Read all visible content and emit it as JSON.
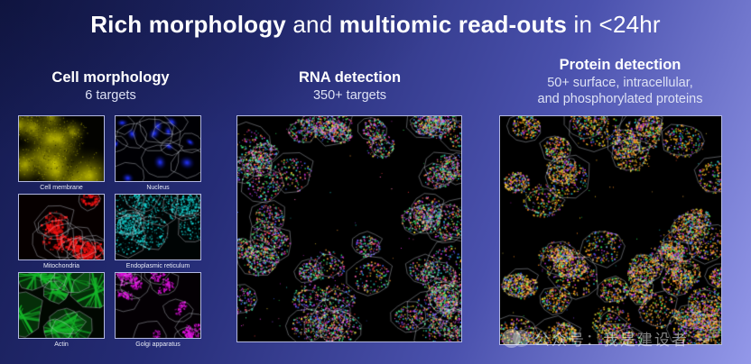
{
  "title": {
    "segments": [
      {
        "text": "Rich morphology",
        "bold": true
      },
      {
        "text": " and ",
        "bold": false
      },
      {
        "text": "multiomic read-outs",
        "bold": true
      },
      {
        "text": " in <24hr",
        "bold": false
      }
    ]
  },
  "sections": {
    "morphology": {
      "heading": "Cell morphology",
      "subheading": "6 targets"
    },
    "rna": {
      "heading": "RNA detection",
      "subheading": "350+ targets"
    },
    "protein": {
      "heading": "Protein detection",
      "subheading_line1": "50+ surface, intracellular,",
      "subheading_line2": "and phosphorylated proteins"
    }
  },
  "figures": {
    "morphology_panels": [
      {
        "label": "Cell membrane",
        "style": "membrane",
        "color": "#d8d400",
        "bg": "#030300",
        "seed": 11,
        "cells": 13,
        "rmin": 14,
        "rmax": 28,
        "outlines": false
      },
      {
        "label": "Nucleus",
        "style": "nuclei",
        "color": "#2030f0",
        "bg": "#000004",
        "seed": 22,
        "cells": 12,
        "rmin": 12,
        "rmax": 21,
        "outlines": true
      },
      {
        "label": "Mitochondria",
        "style": "mito",
        "color": "#ee1212",
        "bg": "#060000",
        "seed": 33,
        "cells": 10,
        "rmin": 13,
        "rmax": 23,
        "outlines": true
      },
      {
        "label": "Endoplasmic reticulum",
        "style": "speckle",
        "color": "#15d8d8",
        "bg": "#000404",
        "seed": 44,
        "cells": 10,
        "rmin": 13,
        "rmax": 23,
        "outlines": true
      },
      {
        "label": "Actin",
        "style": "filament",
        "color": "#15b82a",
        "bg": "#010801",
        "seed": 55,
        "cells": 9,
        "rmin": 15,
        "rmax": 25,
        "outlines": true
      },
      {
        "label": "Golgi apparatus",
        "style": "clusters",
        "color": "#dd14dd",
        "bg": "#040004",
        "seed": 66,
        "cells": 10,
        "rmin": 12,
        "rmax": 22,
        "outlines": true
      }
    ],
    "rna_panel": {
      "style": "multidot",
      "bg": "#000000",
      "seed": 77,
      "cells": 64,
      "rmin": 12,
      "rmax": 25,
      "outlines": true,
      "void_center": true,
      "dots_per_cell": 120,
      "lone_dots": 90,
      "palette": [
        "#ff4242",
        "#38e05e",
        "#3b6bff",
        "#ffe23b",
        "#e036e0",
        "#2fd8d8",
        "#ff9d3b",
        "#9b4dff",
        "#4dff9b",
        "#ff66b2"
      ]
    },
    "protein_panel": {
      "style": "multidot",
      "bg": "#000000",
      "seed": 88,
      "cells": 64,
      "rmin": 12,
      "rmax": 25,
      "outlines": true,
      "void_center": true,
      "dots_per_cell": 175,
      "lone_dots": 80,
      "palette": [
        "#ffd21e",
        "#ffaa1e",
        "#ff8c1e",
        "#ffe44d",
        "#ff5c35",
        "#2ce052",
        "#3b6bff",
        "#e032e0",
        "#28d8d8",
        "#ffd21e",
        "#ffb340",
        "#9b4dff"
      ]
    }
  },
  "watermark": {
    "text": "公众号：我是建设者"
  },
  "colors": {
    "background_start": "#141a4e",
    "background_end": "#9398e9",
    "panel_border": "#b3b8e2",
    "cell_outline": "#dee2ee",
    "text_primary": "#ffffff",
    "text_secondary": "#dde1f4"
  }
}
